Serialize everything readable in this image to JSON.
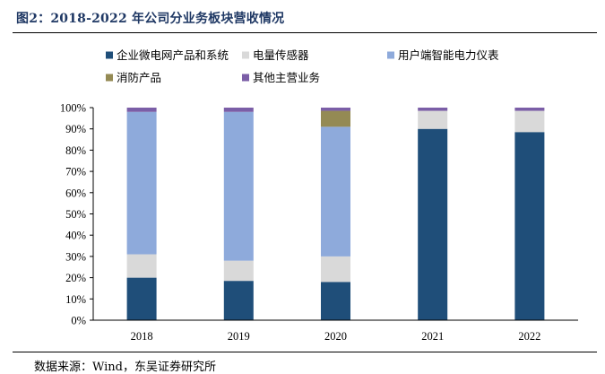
{
  "figure": {
    "title": "图2：2018-2022 年公司分业务板块营收情况",
    "source": "数据来源：Wind，东吴证券研究所"
  },
  "chart_data": {
    "type": "bar",
    "stacked": true,
    "categories": [
      "2018",
      "2019",
      "2020",
      "2021",
      "2022"
    ],
    "series": [
      {
        "name": "企业微电网产品和系统",
        "color": "#1f4e79",
        "values": [
          20,
          18.5,
          18,
          90,
          88.5
        ]
      },
      {
        "name": "电量传感器",
        "color": "#d9d9d9",
        "values": [
          11,
          9.5,
          12,
          8.5,
          10
        ]
      },
      {
        "name": "用户端智能电力仪表",
        "color": "#8eaadb",
        "values": [
          67,
          70,
          61,
          0,
          0
        ]
      },
      {
        "name": "消防产品",
        "color": "#948a54",
        "values": [
          0,
          0,
          7.5,
          0,
          0
        ]
      },
      {
        "name": "其他主营业务",
        "color": "#7b5ea7",
        "values": [
          2,
          2,
          1.5,
          1.5,
          1.5
        ]
      }
    ],
    "y_ticks": [
      "0%",
      "10%",
      "20%",
      "30%",
      "40%",
      "50%",
      "60%",
      "70%",
      "80%",
      "90%",
      "100%"
    ],
    "ylim": [
      0,
      100
    ],
    "legend_position": "top",
    "grid": false,
    "xlabel": "",
    "ylabel": ""
  }
}
